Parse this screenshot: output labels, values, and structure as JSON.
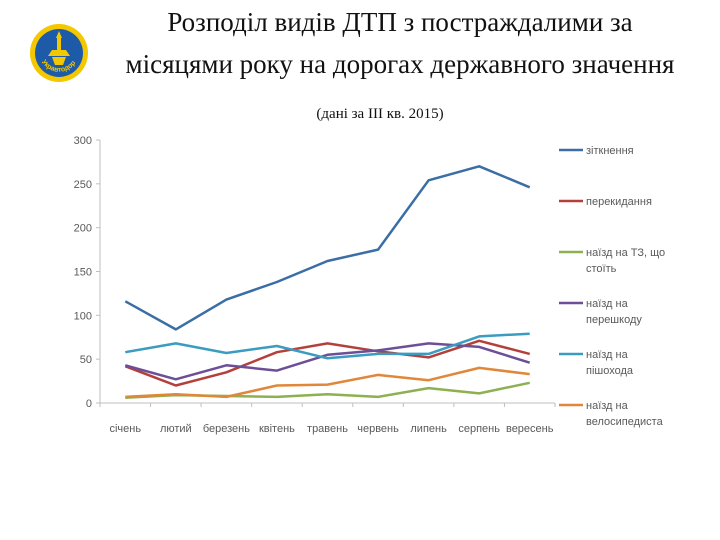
{
  "page": {
    "title_line1": "Розподіл видів ДТП з постраждалими за",
    "title_line2": "місяцями року на дорогах державного значення",
    "subtitle": "(дані  за ІІІ кв. 2015)",
    "logo_text": "Укравтодор"
  },
  "chart_data": {
    "type": "line",
    "categories": [
      "січень",
      "лютий",
      "березень",
      "квітень",
      "травень",
      "червень",
      "липень",
      "серпень",
      "вересень"
    ],
    "ylim": [
      0,
      300
    ],
    "yticks": [
      0,
      50,
      100,
      150,
      200,
      250,
      300
    ],
    "grid": false,
    "legend_position": "right",
    "series": [
      {
        "name": "зіткнення",
        "color": "#3a6ea5",
        "values": [
          116,
          84,
          118,
          138,
          162,
          175,
          254,
          270,
          246
        ]
      },
      {
        "name": "перекидання",
        "color": "#b3403a",
        "values": [
          42,
          20,
          35,
          58,
          68,
          59,
          52,
          71,
          56
        ]
      },
      {
        "name": "наїзд на ТЗ, що стоїть",
        "color": "#8db050",
        "values": [
          6,
          9,
          8,
          7,
          10,
          7,
          17,
          11,
          23
        ]
      },
      {
        "name": "наїзд на перешкоду",
        "color": "#6c4f96",
        "values": [
          43,
          27,
          43,
          37,
          55,
          60,
          68,
          64,
          46
        ]
      },
      {
        "name": "наїзд на пішохода",
        "color": "#3a9cc0",
        "values": [
          58,
          68,
          57,
          65,
          51,
          56,
          56,
          76,
          79
        ]
      },
      {
        "name": "наїзд на велосипедиста",
        "color": "#e0873a",
        "values": [
          7,
          10,
          7,
          20,
          21,
          32,
          26,
          40,
          33
        ]
      }
    ],
    "legend_labels": [
      [
        "зіткнення"
      ],
      [
        "перекидання"
      ],
      [
        "наїзд на ТЗ, що",
        "стоїть"
      ],
      [
        "наїзд на",
        "перешкоду"
      ],
      [
        "наїзд на",
        "пішохода"
      ],
      [
        "наїзд на",
        "велосипедиста"
      ]
    ]
  }
}
